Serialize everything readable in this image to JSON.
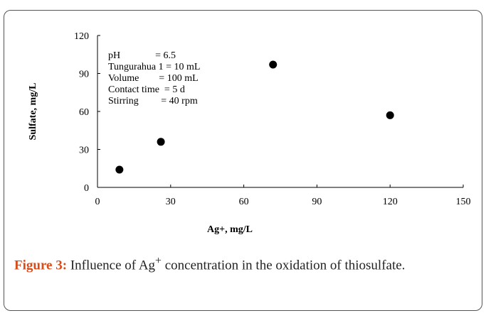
{
  "chart_data": {
    "type": "scatter",
    "x_label": "Ag+, mg/L",
    "y_label": "Sulfate, mg/L",
    "x": [
      9,
      26,
      72,
      120
    ],
    "values": [
      14,
      36,
      97,
      57
    ],
    "color": "#000000",
    "xlim": [
      0,
      150
    ],
    "xticks": [
      0,
      30,
      60,
      90,
      120,
      150
    ],
    "ylim": [
      0,
      120
    ],
    "yticks": [
      0,
      30,
      60,
      90,
      120
    ],
    "annotations": [
      "pH              = 6.5",
      "Tungurahua 1 = 10 mL",
      "Volume        = 100 mL",
      "Contact time  = 5 d",
      "Stirring         = 40 rpm"
    ]
  },
  "caption": {
    "label": "Figure 3:",
    "text": "Influence of Ag",
    "superscript": "+",
    "text_end": " concentration in the oxidation of thiosulfate."
  }
}
